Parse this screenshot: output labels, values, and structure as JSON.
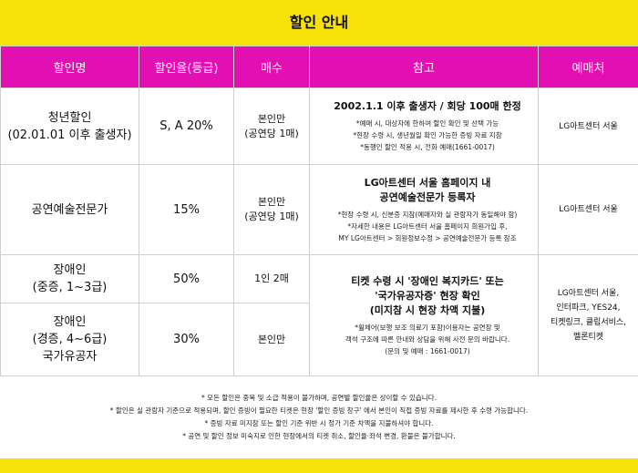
{
  "title": "할인 안내",
  "headers": [
    "할인명",
    "할인율(등급)",
    "매수",
    "참고",
    "예매처"
  ],
  "rows": {
    "youth": {
      "name": [
        "청년할인",
        "(02.01.01 이후 출생자)"
      ],
      "rate": "S, A 20%",
      "qty": [
        "본인만",
        "(공연당 1매)"
      ],
      "note_head": [
        "2002.1.1 이후 출생자 / 회당 100매 한정"
      ],
      "notes": [
        "*예매 시, 대상자에 한하여 할인 확인 및 선택 가능",
        "*현장 수령 시, 생년월일 확인 가능한 증빙 자료 지참",
        "*동행인 할인 적용 시, 전화 예매(1661-0017)"
      ],
      "seller": [
        "LG아트센터 서울"
      ]
    },
    "arts": {
      "name": [
        "공연예술전문가"
      ],
      "rate": "15%",
      "qty": [
        "본인만",
        "(공연당 1매)"
      ],
      "note_head": [
        "LG아트센터 서울 홈페이지 내",
        "공연예술전문가 등록자"
      ],
      "notes": [
        "*현장 수령 시, 신분증 지참(예매자와 실 관람자가 동일해야 함)",
        "*자세한 내용은 LG아트센터 서울 홈페이지 회원가입 후,",
        "MY LG아트센터 > 회원정보수정 > 공연예술전문가 등록 참조"
      ],
      "seller": [
        "LG아트센터 서울"
      ]
    },
    "disabled_severe": {
      "name": [
        "장애인",
        "(중증, 1~3급)"
      ],
      "rate": "50%",
      "qty": [
        "1인 2매"
      ]
    },
    "disabled_mild": {
      "name": [
        "장애인",
        "(경증, 4~6급)",
        "국가유공자"
      ],
      "rate": "30%",
      "qty": [
        "본인만"
      ]
    },
    "shared": {
      "note_head": [
        "티켓 수령 시 '장애인 복지카드' 또는",
        "'국가유공자증' 현장 확인",
        "(미지참 시 현장 차액 지불)"
      ],
      "notes": [
        "*휠체어(보행 보조 의료기 포함)이용자는 공연장 및",
        "  객석 구조에 따른 안내와 상담을 위해 사전 문의 바랍니다.",
        "(문의 및 예매 : 1661-0017)"
      ],
      "seller": [
        "LG아트센터 서울,",
        "인터파크, YES24,",
        "티켓링크, 클립서비스,",
        "멜론티켓"
      ]
    }
  },
  "footer": [
    "* 모든 할인은 중복 및 소급 적용이 불가하며, 공연별 할인율은 상이할 수 있습니다.",
    "* 할인은 실 관람자 기준으로 적용되며, 할인 증빙이 필요한 티켓은 현장 '할인 증빙 창구' 에서 본인이 직접 증빙 자료를 제시한 후 수령 가능합니다.",
    "* 증빙 자료 미지참 또는 할인 기준 위반 시 정가 기준 차액을 지불하셔야 합니다.",
    "* 공연 및 할인 정보 미숙지로 인한 현장에서의 티켓 취소, 할인율·좌석 변경, 환불은 불가합니다."
  ],
  "colors": {
    "accent_yellow": "#f7e10a",
    "header_magenta": "#e20fb3"
  }
}
